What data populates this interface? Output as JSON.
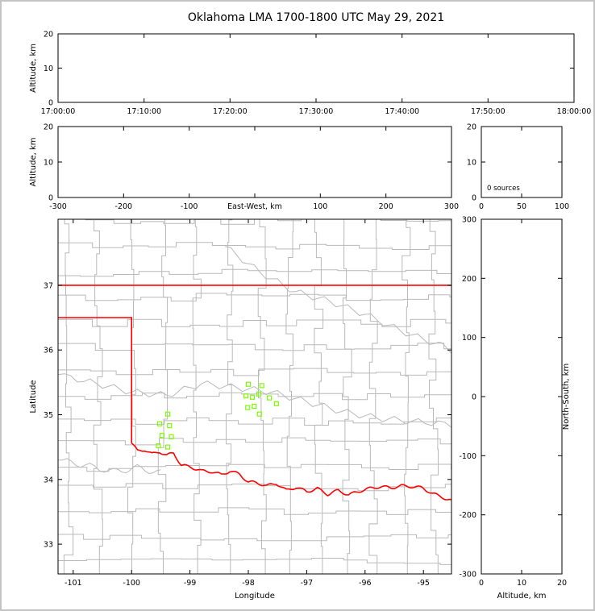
{
  "title": "Oklahoma LMA 1700-1800 UTC May 29, 2021",
  "colors": {
    "state_border": "#ff0000",
    "county": "#b9b9b9",
    "river": "#b9b9b9",
    "source": "#7CFC00",
    "axis": "#000000",
    "background": "#ffffff"
  },
  "chart_data": [
    {
      "id": "time_height",
      "type": "scatter",
      "xlabel": "",
      "ylabel": "Altitude, km",
      "xtick_labels": [
        "17:00:00",
        "17:10:00",
        "17:20:00",
        "17:30:00",
        "17:40:00",
        "17:50:00",
        "18:00:00"
      ],
      "ylim": [
        0,
        20
      ],
      "yticks": [
        0,
        10,
        20
      ],
      "points": []
    },
    {
      "id": "ew_height",
      "type": "scatter",
      "xlabel": "East-West, km",
      "ylabel": "Altitude, km",
      "xlim": [
        -300,
        300
      ],
      "xticks": [
        -300,
        -200,
        -100,
        0,
        100,
        200,
        300
      ],
      "xlabel_replaces_zero_tick": true,
      "ylim": [
        0,
        20
      ],
      "yticks": [
        0,
        10,
        20
      ],
      "points": []
    },
    {
      "id": "alt_hist",
      "type": "histogram",
      "annotation": "0 sources",
      "xlim": [
        0,
        100
      ],
      "xticks": [
        0,
        50,
        100
      ],
      "ylim": [
        0,
        20
      ],
      "yticks": [
        0,
        10,
        20
      ],
      "values": []
    },
    {
      "id": "map",
      "type": "scatter",
      "xlabel": "Longitude",
      "ylabel": "Latitude",
      "xlim": [
        -101.26,
        -94.52
      ],
      "xticks": [
        -101,
        -100,
        -99,
        -98,
        -97,
        -96,
        -95
      ],
      "ylim": [
        32.54,
        38.02
      ],
      "yticks": [
        33,
        34,
        35,
        36,
        37
      ],
      "sources": [
        [
          -98.0,
          35.47
        ],
        [
          -97.77,
          35.45
        ],
        [
          -98.04,
          35.29
        ],
        [
          -97.93,
          35.27
        ],
        [
          -97.82,
          35.32
        ],
        [
          -97.64,
          35.26
        ],
        [
          -98.01,
          35.11
        ],
        [
          -97.9,
          35.13
        ],
        [
          -97.81,
          35.01
        ],
        [
          -97.52,
          35.17
        ],
        [
          -99.38,
          35.01
        ],
        [
          -99.52,
          34.86
        ],
        [
          -99.35,
          34.83
        ],
        [
          -99.48,
          34.68
        ],
        [
          -99.32,
          34.66
        ],
        [
          -99.54,
          34.52
        ],
        [
          -99.38,
          34.5
        ]
      ],
      "state_boundary": {
        "north": [
          [
            -101.26,
            37.0
          ],
          [
            -94.52,
            37.0
          ]
        ],
        "panhandle": [
          [
            -101.26,
            36.5
          ],
          [
            -100.0,
            36.5
          ],
          [
            -100.0,
            34.56
          ]
        ],
        "red_river": [
          [
            -100.0,
            34.56
          ],
          [
            -99.9,
            34.44
          ],
          [
            -99.78,
            34.46
          ],
          [
            -99.65,
            34.39
          ],
          [
            -99.52,
            34.43
          ],
          [
            -99.4,
            34.37
          ],
          [
            -99.28,
            34.41
          ],
          [
            -99.15,
            34.22
          ],
          [
            -98.98,
            34.19
          ],
          [
            -98.8,
            34.13
          ],
          [
            -98.62,
            34.12
          ],
          [
            -98.46,
            34.07
          ],
          [
            -98.32,
            34.13
          ],
          [
            -98.15,
            34.08
          ],
          [
            -98.0,
            33.96
          ],
          [
            -97.86,
            33.95
          ],
          [
            -97.68,
            33.9
          ],
          [
            -97.52,
            33.94
          ],
          [
            -97.35,
            33.83
          ],
          [
            -97.18,
            33.88
          ],
          [
            -97.0,
            33.81
          ],
          [
            -96.82,
            33.86
          ],
          [
            -96.64,
            33.77
          ],
          [
            -96.46,
            33.83
          ],
          [
            -96.28,
            33.76
          ],
          [
            -96.1,
            33.82
          ],
          [
            -95.92,
            33.86
          ],
          [
            -95.74,
            33.89
          ],
          [
            -95.56,
            33.87
          ],
          [
            -95.38,
            33.9
          ],
          [
            -95.2,
            33.89
          ],
          [
            -95.02,
            33.87
          ],
          [
            -94.84,
            33.78
          ],
          [
            -94.66,
            33.72
          ],
          [
            -94.52,
            33.67
          ]
        ]
      },
      "rivers": [
        [
          [
            -101.26,
            35.62
          ],
          [
            -100.6,
            35.48
          ],
          [
            -100.0,
            35.35
          ],
          [
            -99.4,
            35.3
          ],
          [
            -98.8,
            35.48
          ],
          [
            -98.2,
            35.42
          ],
          [
            -97.6,
            35.35
          ],
          [
            -97.0,
            35.2
          ],
          [
            -96.4,
            35.05
          ],
          [
            -95.8,
            34.95
          ],
          [
            -95.2,
            34.9
          ],
          [
            -94.52,
            34.85
          ]
        ],
        [
          [
            -98.4,
            37.6
          ],
          [
            -97.8,
            37.2
          ],
          [
            -97.2,
            36.9
          ],
          [
            -96.6,
            36.75
          ],
          [
            -96.0,
            36.55
          ],
          [
            -95.4,
            36.3
          ],
          [
            -94.8,
            36.1
          ],
          [
            -94.52,
            36.0
          ]
        ],
        [
          [
            -101.26,
            34.3
          ],
          [
            -100.8,
            34.22
          ],
          [
            -100.3,
            34.12
          ],
          [
            -99.9,
            34.18
          ],
          [
            -99.5,
            34.1
          ]
        ]
      ]
    },
    {
      "id": "ns_height",
      "type": "scatter",
      "xlabel": "Altitude, km",
      "ylabel": "North-South, km",
      "xlim": [
        0,
        20
      ],
      "xticks": [
        0,
        10,
        20
      ],
      "ylim": [
        -300,
        300
      ],
      "yticks": [
        -300,
        -200,
        -100,
        0,
        100,
        200,
        300
      ],
      "points": []
    }
  ]
}
